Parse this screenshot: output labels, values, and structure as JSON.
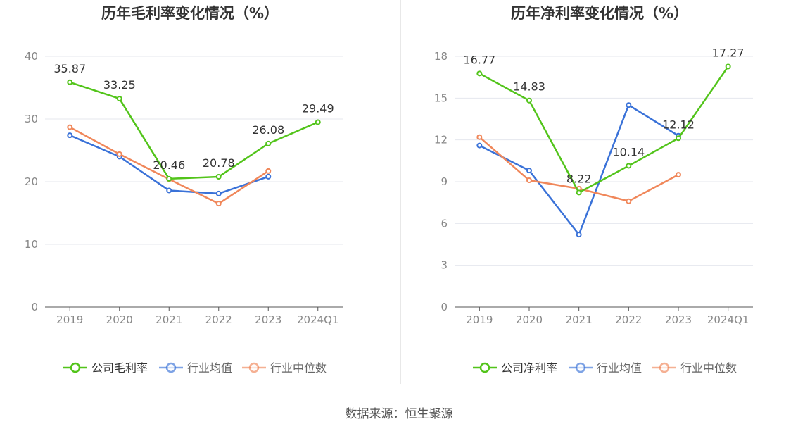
{
  "source_label": "数据来源：恒生聚源",
  "chart_data": [
    {
      "type": "line",
      "title": "历年毛利率变化情况（%）",
      "categories": [
        "2019",
        "2020",
        "2021",
        "2022",
        "2023",
        "2024Q1"
      ],
      "ylim": [
        0,
        40
      ],
      "yticks": [
        0,
        10,
        20,
        30,
        40
      ],
      "grid": true,
      "legend_position": "bottom",
      "series": [
        {
          "name": "公司毛利率",
          "color": "#52c41a",
          "values": [
            35.87,
            33.25,
            20.46,
            20.78,
            26.08,
            29.49
          ],
          "labels": [
            "35.87",
            "33.25",
            "20.46",
            "20.78",
            "26.08",
            "29.49"
          ]
        },
        {
          "name": "行业均值",
          "color": "#3a72d8",
          "values": [
            27.4,
            24.0,
            18.6,
            18.1,
            20.8,
            null
          ]
        },
        {
          "name": "行业中位数",
          "color": "#f0875a",
          "values": [
            28.7,
            24.4,
            20.4,
            16.5,
            21.7,
            null
          ]
        }
      ]
    },
    {
      "type": "line",
      "title": "历年净利率变化情况（%）",
      "categories": [
        "2019",
        "2020",
        "2021",
        "2022",
        "2023",
        "2024Q1"
      ],
      "ylim": [
        0,
        18
      ],
      "yticks": [
        0,
        3,
        6,
        9,
        12,
        15,
        18
      ],
      "grid": true,
      "legend_position": "bottom",
      "series": [
        {
          "name": "公司净利率",
          "color": "#52c41a",
          "values": [
            16.77,
            14.83,
            8.22,
            10.14,
            12.12,
            17.27
          ],
          "labels": [
            "16.77",
            "14.83",
            "8.22",
            "10.14",
            "12.12",
            "17.27"
          ]
        },
        {
          "name": "行业均值",
          "color": "#3a72d8",
          "values": [
            11.6,
            9.8,
            5.2,
            14.5,
            12.3,
            null
          ]
        },
        {
          "name": "行业中位数",
          "color": "#f0875a",
          "values": [
            12.2,
            9.1,
            8.5,
            7.6,
            9.5,
            null
          ]
        }
      ]
    }
  ]
}
